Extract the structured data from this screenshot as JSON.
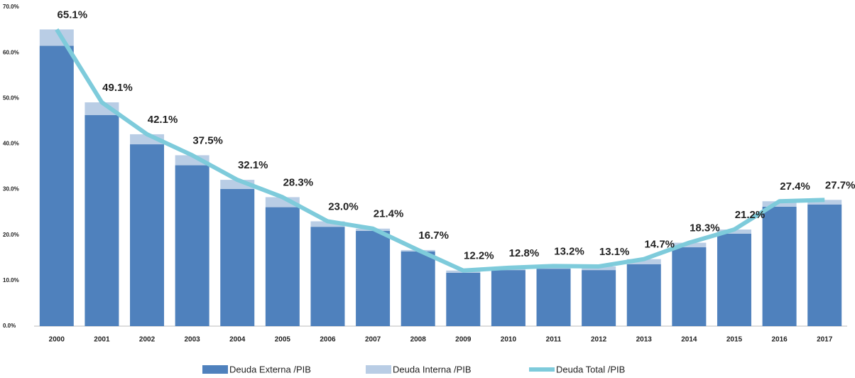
{
  "chart_data": {
    "type": "bar",
    "categories": [
      "2000",
      "2001",
      "2002",
      "2003",
      "2004",
      "2005",
      "2006",
      "2007",
      "2008",
      "2009",
      "2010",
      "2011",
      "2012",
      "2013",
      "2014",
      "2015",
      "2016",
      "2017"
    ],
    "stacked": true,
    "series": [
      {
        "name": "Deuda Externa /PIB",
        "color": "#4f81bd",
        "values": [
          61.5,
          46.3,
          39.9,
          35.3,
          30.1,
          26.1,
          21.8,
          20.9,
          16.4,
          11.7,
          12.3,
          12.6,
          12.3,
          13.6,
          17.3,
          20.3,
          26.2,
          26.7
        ]
      },
      {
        "name": "Deuda Interna /PIB",
        "color": "#b9cde5",
        "values": [
          3.6,
          2.8,
          2.2,
          2.2,
          2.0,
          2.2,
          1.2,
          0.5,
          0.3,
          0.5,
          0.5,
          0.6,
          0.8,
          1.1,
          1.0,
          0.9,
          1.2,
          1.0
        ]
      },
      {
        "name": "Deuda Total /PIB",
        "type": "line",
        "color": "#7ecbdb",
        "values": [
          65.1,
          49.1,
          42.1,
          37.5,
          32.1,
          28.3,
          23.0,
          21.4,
          16.7,
          12.2,
          12.8,
          13.2,
          13.1,
          14.7,
          18.3,
          21.2,
          27.4,
          27.7
        ],
        "value_labels": [
          "65.1%",
          "49.1%",
          "42.1%",
          "37.5%",
          "32.1%",
          "28.3%",
          "23.0%",
          "21.4%",
          "16.7%",
          "12.2%",
          "12.8%",
          "13.2%",
          "13.1%",
          "14.7%",
          "18.3%",
          "21.2%",
          "27.4%",
          "27.7%"
        ]
      }
    ],
    "ylim": [
      0,
      70
    ],
    "yticks": [
      {
        "value": 0,
        "label": "0.0%"
      },
      {
        "value": 10,
        "label": "10.0%"
      },
      {
        "value": 20,
        "label": "20.0%"
      },
      {
        "value": 30,
        "label": "30.0%"
      },
      {
        "value": 40,
        "label": "40.0%"
      },
      {
        "value": 50,
        "label": "50.0%"
      },
      {
        "value": 60,
        "label": "60.0%"
      },
      {
        "value": 70,
        "label": "70.0%"
      }
    ],
    "legend": "bottom"
  }
}
